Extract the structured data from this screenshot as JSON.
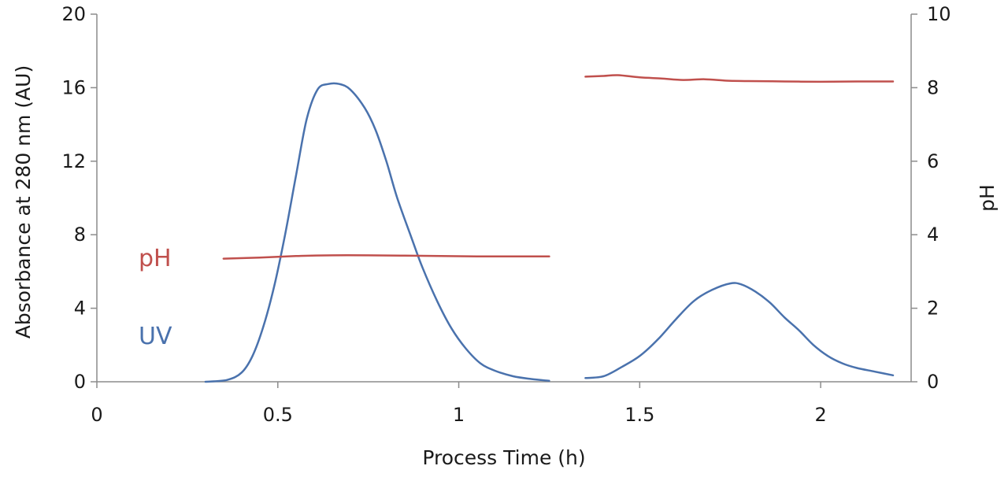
{
  "chart_data": {
    "type": "line",
    "xlabel": "Process Time (h)",
    "ylabel_left": "Absorbance at 280 nm (AU)",
    "ylabel_right": "pH",
    "xlim": [
      0,
      2.25
    ],
    "ylim_left": [
      0,
      20
    ],
    "ylim_right": [
      0,
      10
    ],
    "x_ticks": [
      "0",
      "0.5",
      "1",
      "1.5",
      "2"
    ],
    "x_tick_values": [
      0,
      0.5,
      1,
      1.5,
      2
    ],
    "y_left_ticks": [
      "0",
      "4",
      "8",
      "12",
      "16",
      "20"
    ],
    "y_left_tick_values": [
      0,
      4,
      8,
      12,
      16,
      20
    ],
    "y_right_ticks": [
      "0",
      "2",
      "4",
      "6",
      "8",
      "10"
    ],
    "y_right_tick_values": [
      0,
      2,
      4,
      6,
      8,
      10
    ],
    "grid": false,
    "series": [
      {
        "name": "UV",
        "axis": "left",
        "color": "#4a72ad",
        "segments": [
          [
            [
              0.3,
              0.0
            ],
            [
              0.36,
              0.1
            ],
            [
              0.4,
              0.5
            ],
            [
              0.43,
              1.4
            ],
            [
              0.46,
              3.0
            ],
            [
              0.49,
              5.2
            ],
            [
              0.52,
              8.0
            ],
            [
              0.55,
              11.2
            ],
            [
              0.58,
              14.3
            ],
            [
              0.61,
              15.9
            ],
            [
              0.64,
              16.2
            ],
            [
              0.67,
              16.2
            ],
            [
              0.7,
              15.9
            ],
            [
              0.74,
              14.9
            ],
            [
              0.77,
              13.7
            ],
            [
              0.8,
              12.0
            ],
            [
              0.83,
              10.0
            ],
            [
              0.87,
              7.8
            ],
            [
              0.9,
              6.2
            ],
            [
              0.94,
              4.4
            ],
            [
              0.98,
              2.9
            ],
            [
              1.02,
              1.8
            ],
            [
              1.06,
              1.0
            ],
            [
              1.1,
              0.6
            ],
            [
              1.15,
              0.3
            ],
            [
              1.2,
              0.15
            ],
            [
              1.25,
              0.05
            ]
          ],
          [
            [
              1.35,
              0.2
            ],
            [
              1.4,
              0.3
            ],
            [
              1.45,
              0.8
            ],
            [
              1.5,
              1.4
            ],
            [
              1.55,
              2.3
            ],
            [
              1.6,
              3.4
            ],
            [
              1.65,
              4.4
            ],
            [
              1.7,
              5.0
            ],
            [
              1.75,
              5.35
            ],
            [
              1.78,
              5.3
            ],
            [
              1.82,
              4.9
            ],
            [
              1.86,
              4.3
            ],
            [
              1.9,
              3.5
            ],
            [
              1.94,
              2.8
            ],
            [
              1.98,
              2.0
            ],
            [
              2.02,
              1.4
            ],
            [
              2.06,
              1.0
            ],
            [
              2.1,
              0.75
            ],
            [
              2.15,
              0.55
            ],
            [
              2.2,
              0.35
            ]
          ]
        ]
      },
      {
        "name": "pH",
        "axis": "right",
        "color": "#c0504d",
        "segments": [
          [
            [
              0.35,
              3.35
            ],
            [
              0.45,
              3.38
            ],
            [
              0.55,
              3.42
            ],
            [
              0.65,
              3.44
            ],
            [
              0.75,
              3.44
            ],
            [
              0.85,
              3.43
            ],
            [
              0.95,
              3.42
            ],
            [
              1.05,
              3.41
            ],
            [
              1.15,
              3.41
            ],
            [
              1.25,
              3.41
            ]
          ],
          [
            [
              1.35,
              8.3
            ],
            [
              1.4,
              8.32
            ],
            [
              1.44,
              8.34
            ],
            [
              1.5,
              8.28
            ],
            [
              1.56,
              8.25
            ],
            [
              1.62,
              8.21
            ],
            [
              1.68,
              8.23
            ],
            [
              1.74,
              8.19
            ],
            [
              1.8,
              8.18
            ],
            [
              1.9,
              8.17
            ],
            [
              2.0,
              8.16
            ],
            [
              2.1,
              8.17
            ],
            [
              2.2,
              8.17
            ]
          ]
        ]
      }
    ]
  }
}
